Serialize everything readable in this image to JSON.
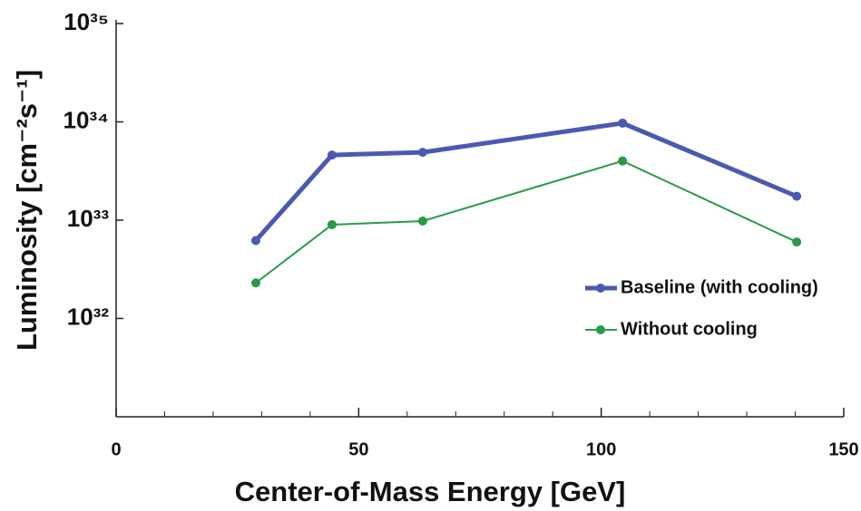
{
  "chart_data": {
    "type": "line",
    "x_label": "Center-of-Mass Energy [GeV]",
    "y_label": "Luminosity [cm⁻²s⁻¹]",
    "log_y": true,
    "xlim": [
      0,
      150
    ],
    "xticks": [
      0,
      50,
      100,
      150
    ],
    "xminorticks": [
      10,
      20,
      30,
      40,
      60,
      70,
      80,
      90,
      110,
      120,
      130,
      140
    ],
    "ylim": [
      1e+31,
      1e+35
    ],
    "yticks": [
      {
        "value": 1e+32,
        "label": "10³²"
      },
      {
        "value": 1e+33,
        "label": "10³³"
      },
      {
        "value": 1e+34,
        "label": "10³⁴"
      },
      {
        "value": 1e+35,
        "label": "10³⁵"
      }
    ],
    "legend": "right",
    "x": [
      28.8,
      44.5,
      63.2,
      104.4,
      140.3
    ],
    "series": [
      {
        "name": "Baseline (with cooling)",
        "color": "#4a5ab2",
        "width": 5,
        "values": [
          6.2e+32,
          4.6e+33,
          4.9e+33,
          9.7e+33,
          1.75e+33
        ]
      },
      {
        "name": "Without cooling",
        "color": "#2a9a48",
        "width": 2,
        "values": [
          2.3e+32,
          9e+32,
          9.8e+32,
          4e+33,
          6e+32
        ]
      }
    ]
  }
}
